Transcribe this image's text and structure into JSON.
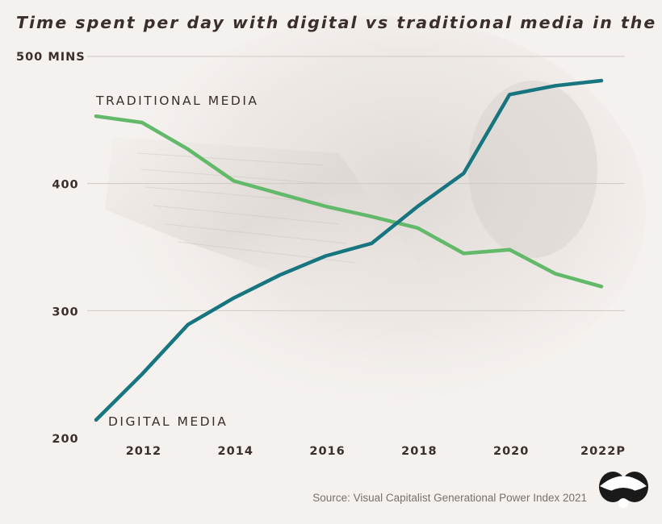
{
  "chart_data": {
    "type": "line",
    "title": "Time spent per day with digital vs traditional media in the U.S.",
    "x": [
      2011,
      2012,
      2013,
      2014,
      2015,
      2016,
      2017,
      2018,
      2019,
      2020,
      2021,
      2022
    ],
    "x_tick_labels": [
      "2012",
      "2014",
      "2016",
      "2018",
      "2020",
      "2022P"
    ],
    "x_tick_values": [
      2012,
      2014,
      2016,
      2018,
      2020,
      2022
    ],
    "y_tick_labels": [
      "200",
      "300",
      "400",
      "500 MINS"
    ],
    "y_tick_values": [
      200,
      300,
      400,
      500
    ],
    "ylim": [
      200,
      500
    ],
    "grid": true,
    "series": [
      {
        "name": "TRADITIONAL MEDIA",
        "color": "#62b96a",
        "values": [
          453,
          448,
          427,
          402,
          392,
          382,
          374,
          365,
          345,
          348,
          329,
          319
        ]
      },
      {
        "name": "DIGITAL MEDIA",
        "color": "#177580",
        "values": [
          214,
          250,
          289,
          310,
          328,
          343,
          353,
          382,
          408,
          470,
          477,
          481
        ]
      }
    ]
  },
  "source": "Source: Visual Capitalist Generational Power Index 2021",
  "logo_icon": "visual-capitalist-logo-icon",
  "colors": {
    "background": "#f5f1ee",
    "text": "#3a2f2c",
    "grid": "#cfc9c5"
  }
}
